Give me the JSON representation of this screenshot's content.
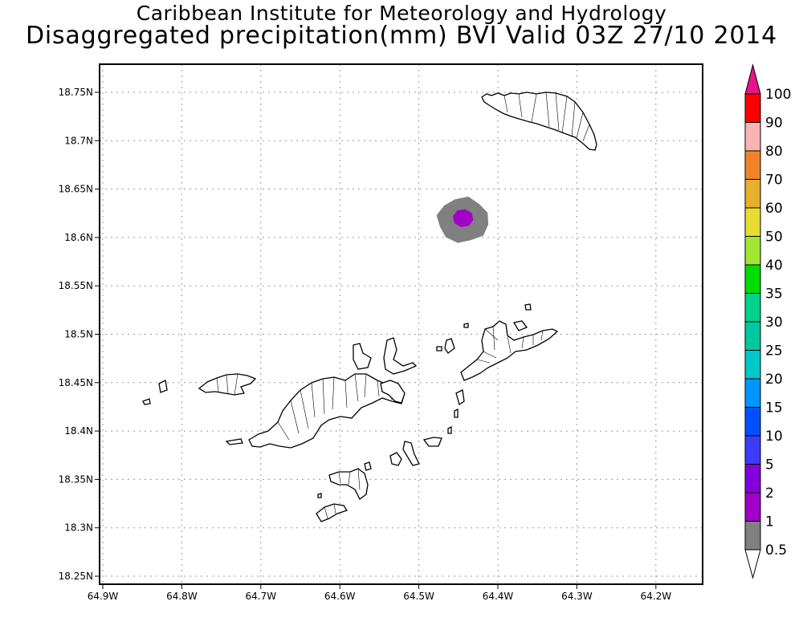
{
  "title": "Caribbean Institute for Meteorology and Hydrology",
  "subtitle": "Disaggregated precipitation(mm) BVI Valid 03Z 27/10 2014",
  "map": {
    "lon_range": [
      -64.9,
      -64.15
    ],
    "lat_range": [
      18.24,
      18.79
    ],
    "x_ticks": [
      {
        "value": -64.9,
        "label": "64.9W"
      },
      {
        "value": -64.8,
        "label": "64.8W"
      },
      {
        "value": -64.7,
        "label": "64.7W"
      },
      {
        "value": -64.6,
        "label": "64.6W"
      },
      {
        "value": -64.5,
        "label": "64.5W"
      },
      {
        "value": -64.4,
        "label": "64.4W"
      },
      {
        "value": -64.3,
        "label": "64.3W"
      },
      {
        "value": -64.2,
        "label": "64.2W"
      }
    ],
    "y_ticks": [
      {
        "value": 18.25,
        "label": "18.25N"
      },
      {
        "value": 18.3,
        "label": "18.3N"
      },
      {
        "value": 18.35,
        "label": "18.35N"
      },
      {
        "value": 18.4,
        "label": "18.4N"
      },
      {
        "value": 18.45,
        "label": "18.45N"
      },
      {
        "value": 18.5,
        "label": "18.5N"
      },
      {
        "value": 18.55,
        "label": "18.55N"
      },
      {
        "value": 18.6,
        "label": "18.6N"
      },
      {
        "value": 18.65,
        "label": "18.65N"
      },
      {
        "value": 18.7,
        "label": "18.7N"
      },
      {
        "value": 18.75,
        "label": "18.75N"
      }
    ],
    "grid": true,
    "precip_cells": [
      {
        "lon": -64.444,
        "lat": 18.618,
        "value": 0.5,
        "color": "#808080"
      },
      {
        "lon": -64.444,
        "lat": 18.62,
        "value": 2,
        "color": "#a000c8"
      }
    ]
  },
  "colorbar": {
    "levels": [
      "0.5",
      "1",
      "2",
      "5",
      "10",
      "15",
      "20",
      "25",
      "30",
      "35",
      "40",
      "50",
      "60",
      "70",
      "80",
      "90",
      "100"
    ],
    "colors": [
      "#808080",
      "#a000c8",
      "#8200dc",
      "#3c3cff",
      "#0050ff",
      "#0096ff",
      "#00c8c8",
      "#00c8a0",
      "#00d28c",
      "#00dc00",
      "#a0e632",
      "#e6dc32",
      "#e6af2d",
      "#f08228",
      "#fab4b4",
      "#ff0000",
      "#f03c46"
    ],
    "top_color": "#e6148c",
    "bottom_color": "#ffffff"
  }
}
